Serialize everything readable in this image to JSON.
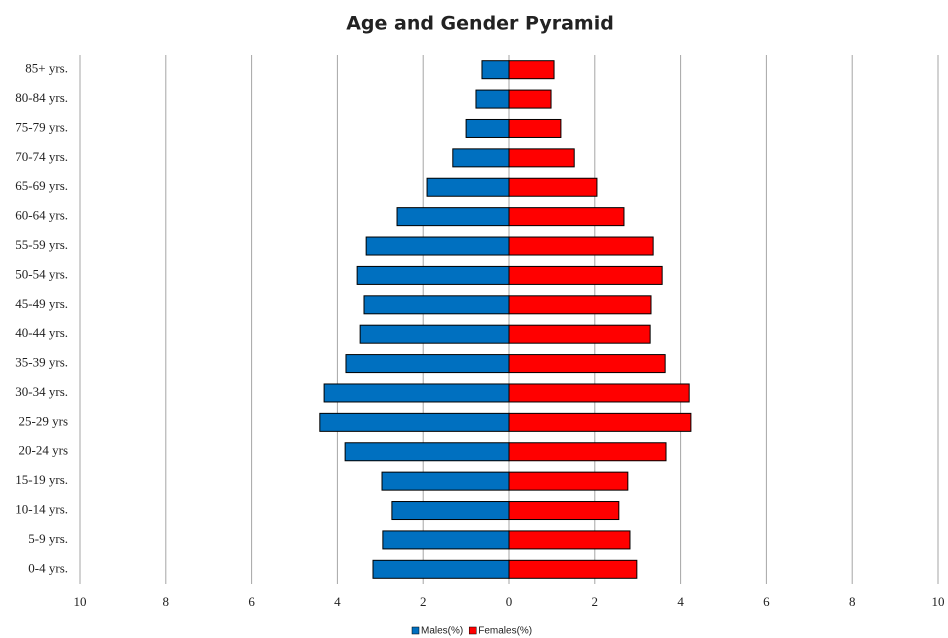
{
  "chart_data": {
    "type": "pyramid",
    "title": "Age and Gender Pyramid",
    "categories": [
      "0-4 yrs.",
      "5-9 yrs.",
      "10-14 yrs.",
      "15-19 yrs.",
      "20-24 yrs",
      "25-29 yrs",
      "30-34 yrs.",
      "35-39 yrs.",
      "40-44 yrs.",
      "45-49 yrs.",
      "50-54 yrs.",
      "55-59 yrs.",
      "60-64 yrs.",
      "65-69 yrs.",
      "70-74 yrs.",
      "75-79 yrs.",
      "80-84 yrs.",
      "85+ yrs."
    ],
    "series": [
      {
        "name": "Males(%)",
        "color": "#0070c0",
        "values": [
          -3.17,
          -2.94,
          -2.73,
          -2.96,
          -3.82,
          -4.41,
          -4.31,
          -3.8,
          -3.47,
          -3.38,
          -3.54,
          -3.33,
          -2.61,
          -1.91,
          -1.31,
          -1.0,
          -0.77,
          -0.63
        ]
      },
      {
        "name": "Females(%)",
        "color": "#ff0000",
        "values": [
          2.98,
          2.82,
          2.56,
          2.77,
          3.66,
          4.24,
          4.2,
          3.64,
          3.29,
          3.31,
          3.57,
          3.36,
          2.68,
          2.05,
          1.52,
          1.21,
          0.98,
          1.05
        ]
      }
    ],
    "xlim": [
      -10,
      10
    ],
    "xticks": [
      {
        "value": -10,
        "label": "10"
      },
      {
        "value": -8,
        "label": "8"
      },
      {
        "value": -6,
        "label": "6"
      },
      {
        "value": -4,
        "label": "4"
      },
      {
        "value": -2,
        "label": "2"
      },
      0,
      2,
      4,
      6,
      8,
      10
    ],
    "grid": true
  }
}
